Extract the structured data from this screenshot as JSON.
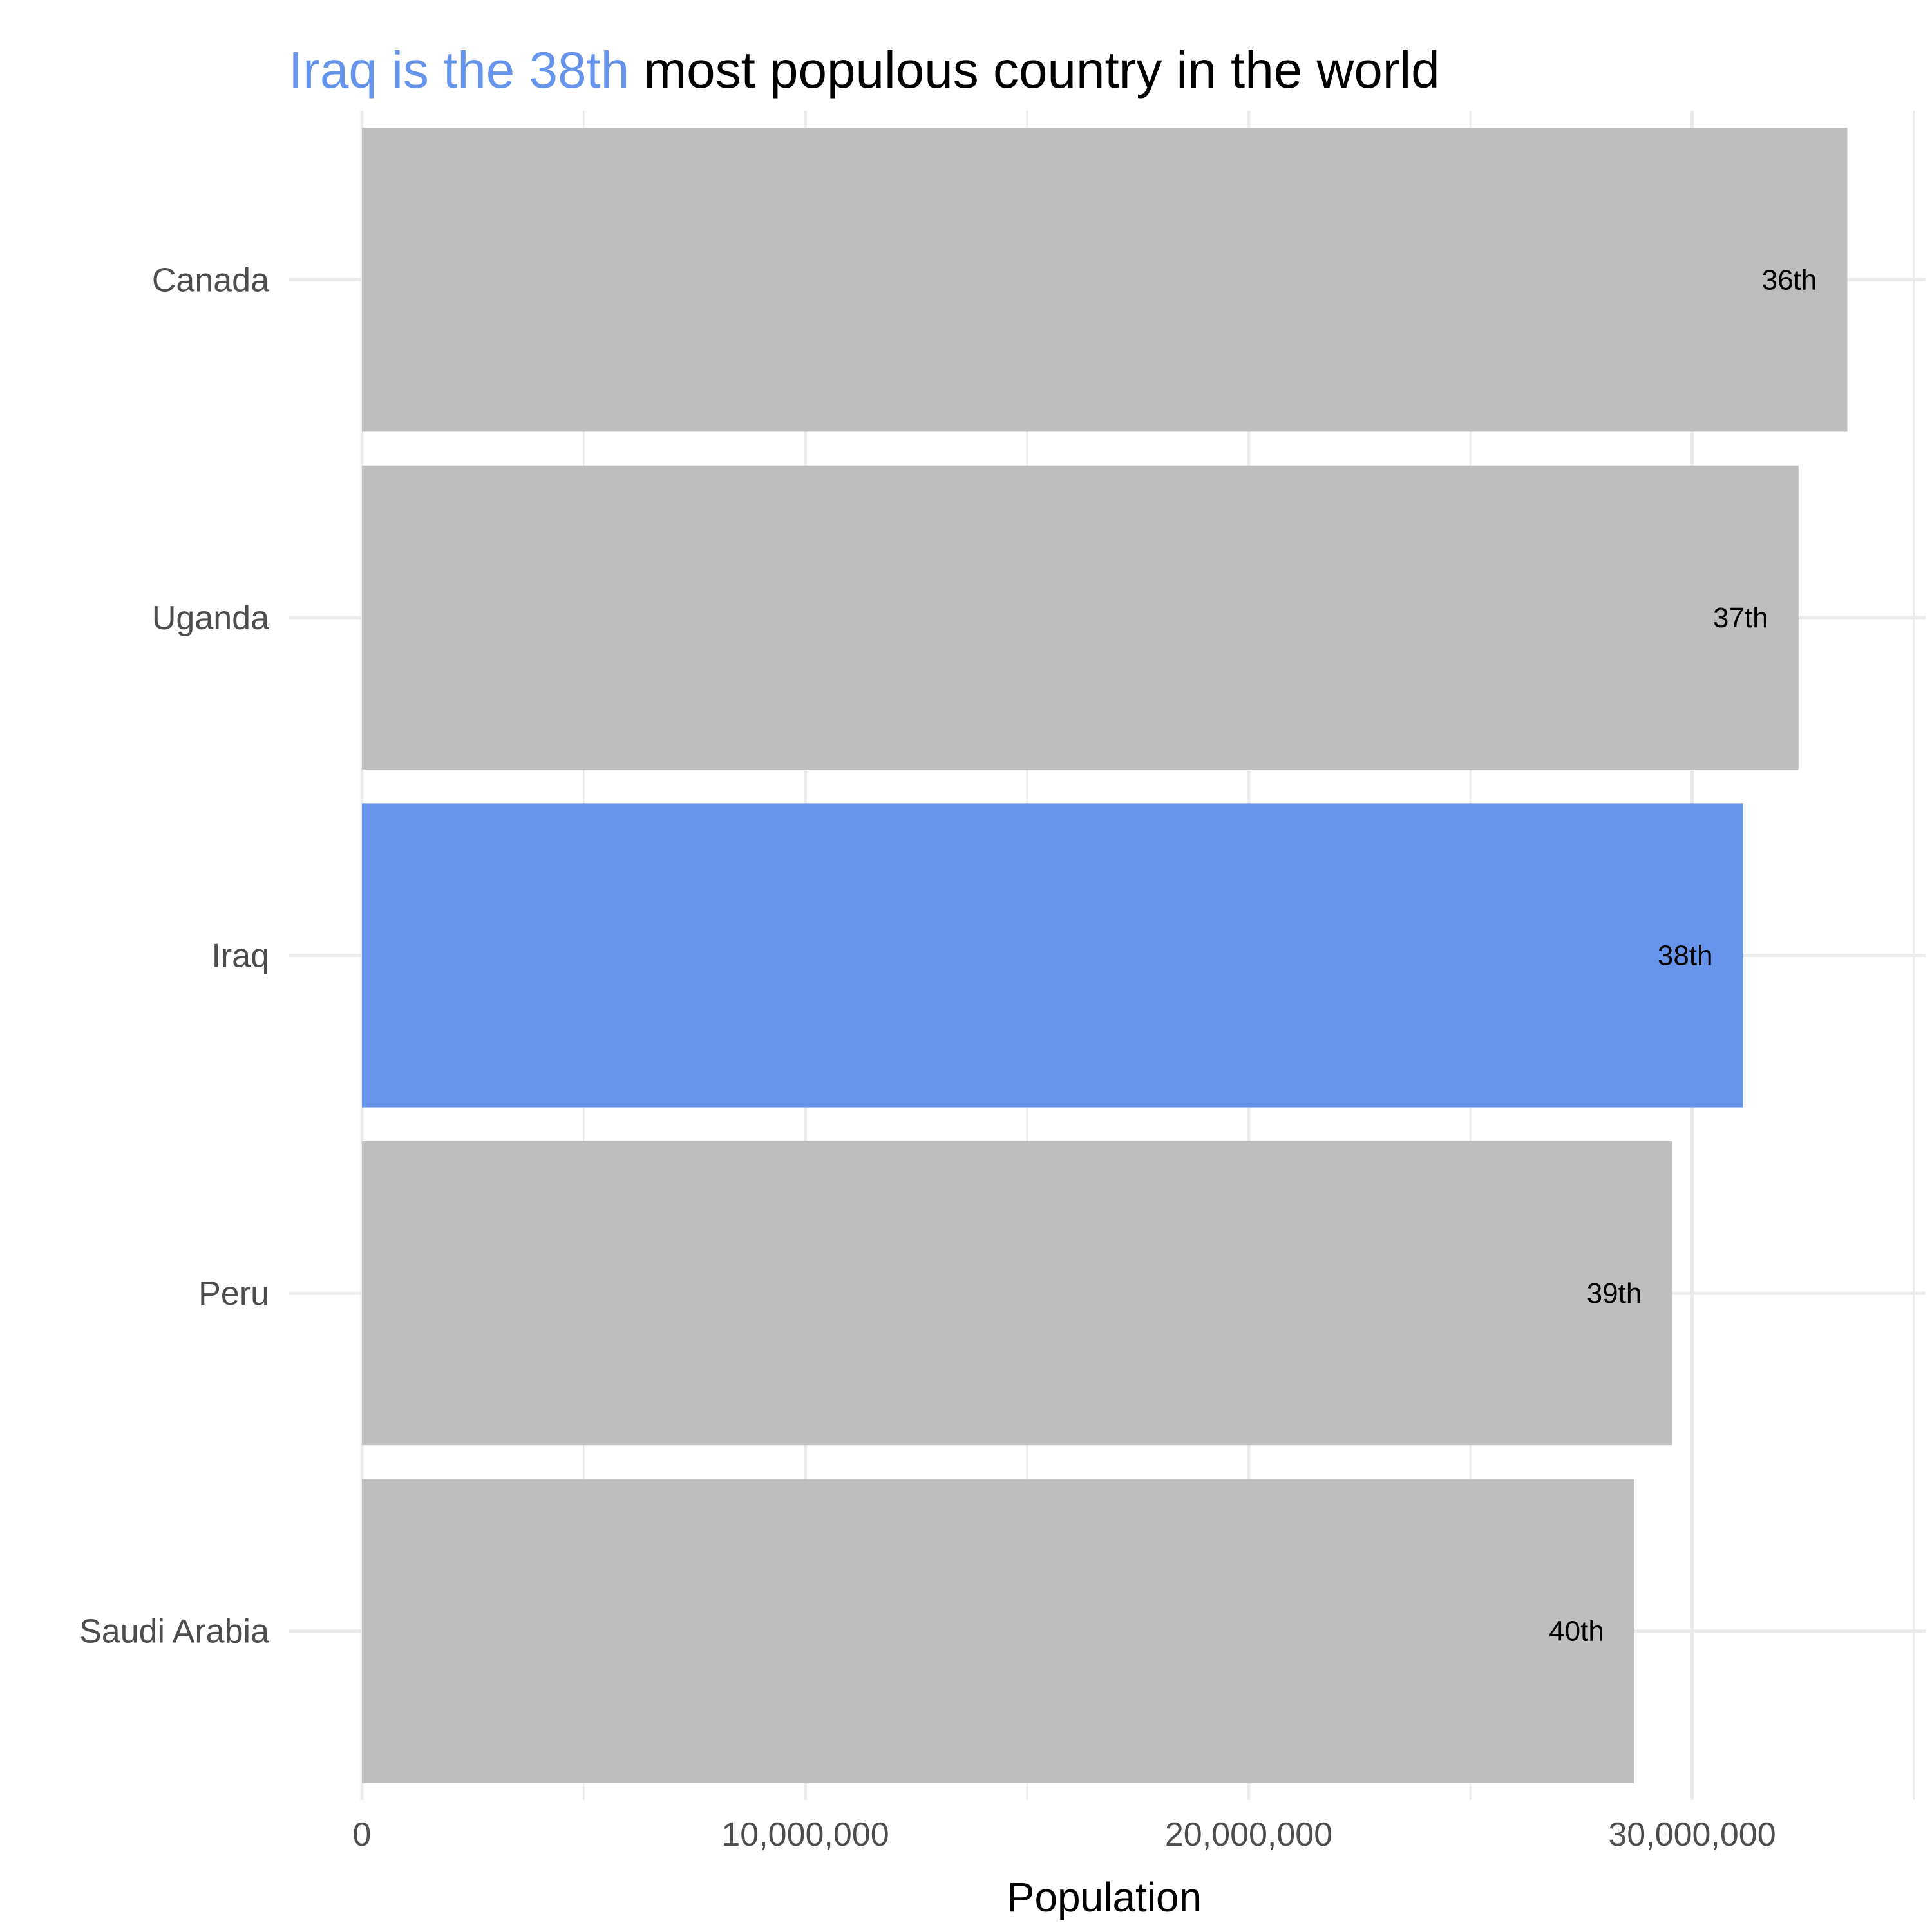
{
  "colors": {
    "highlight": "#6694eb",
    "bar": "#bebebe",
    "title_rest": "#000000",
    "grid": "#ebebeb"
  },
  "chart_data": {
    "type": "bar",
    "orientation": "horizontal",
    "title_highlight": "Iraq is the 38th",
    "title_rest": " most populous country in the world",
    "xlabel": "Population",
    "ylabel": "",
    "categories": [
      "Canada",
      "Uganda",
      "Iraq",
      "Peru",
      "Saudi Arabia"
    ],
    "values": [
      33500000,
      32400000,
      31150000,
      29550000,
      28700000
    ],
    "bar_labels": [
      "36th",
      "37th",
      "38th",
      "39th",
      "40th"
    ],
    "highlight_category": "Iraq",
    "xlim": [
      0,
      35000000
    ],
    "x_ticks": [
      0,
      10000000,
      20000000,
      30000000
    ],
    "x_tick_labels": [
      "0",
      "10,000,000",
      "20,000,000",
      "30,000,000"
    ],
    "grid": true,
    "legend": "none"
  }
}
